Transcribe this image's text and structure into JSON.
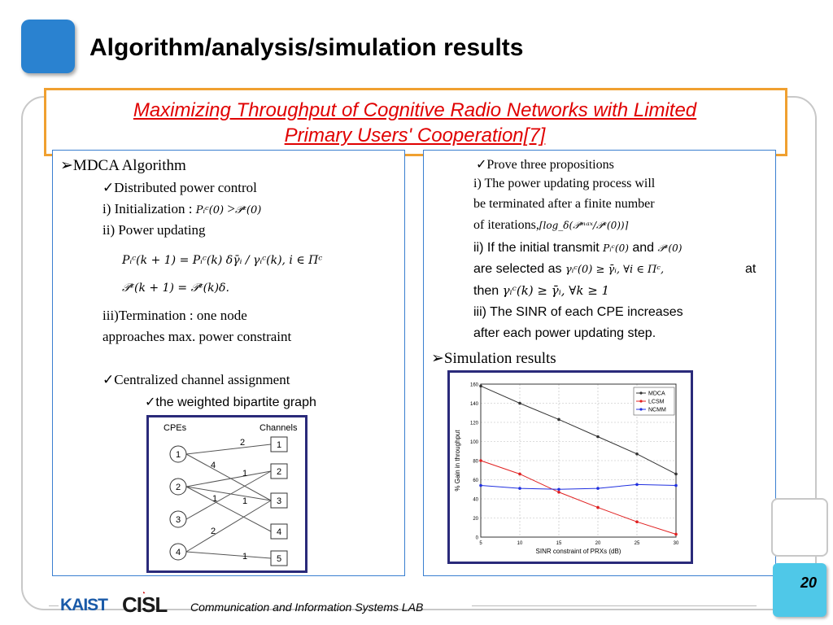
{
  "slide": {
    "title": "Algorithm/analysis/simulation results",
    "subtitle_line1": "Maximizing Throughput of Cognitive Radio Networks with Limited",
    "subtitle_line2": "Primary Users' Cooperation[7]",
    "page_number": "20",
    "footer_text": "Communication and Information Systems LAB",
    "logo_kaist": "KAIST",
    "logo_cisl": "CISL"
  },
  "left": {
    "heading": "MDCA Algorithm",
    "sub1": "Distributed power control",
    "init_label": "i) Initialization :",
    "init_math_a": "Pᵢᶜ(0)",
    "init_gt": ">",
    "init_math_b": "𝒫ᶜ(0)",
    "update_label": "ii) Power updating",
    "eq1": "Pᵢᶜ(k + 1) = Pᵢᶜ(k) δγ̄ᵢ / γᵢᶜ(k),  i ∈ Πᶜ",
    "eq2": "𝒫ᶜ(k + 1) = 𝒫ᶜ(k)δ.",
    "term_line1": "iii)Termination : one node",
    "term_line2": "approaches max. power constraint",
    "sub2": "Centralized channel assignment",
    "sub3": "the weighted bipartite graph"
  },
  "graph": {
    "col_cpes": "CPEs",
    "col_channels": "Channels",
    "cpes": [
      "1",
      "2",
      "3",
      "4"
    ],
    "channels": [
      "1",
      "2",
      "3",
      "4",
      "5"
    ],
    "edge_labels": [
      "2",
      "4",
      "1",
      "1",
      "1",
      "2",
      "1"
    ]
  },
  "right": {
    "prop_heading": "Prove three propositions",
    "p1_l1": "i) The power updating process will",
    "p1_l2": "be terminated after a finite number",
    "p1_l3": "of iterations,",
    "p1_math": "⌈log_δ(𝒫ᵐᵃˣ/𝒫ᶜ(0))⌉",
    "p2_a": "ii) If the initial transmit",
    "p2_math1": "Pᵢᶜ(0)",
    "p2_and": "and",
    "p2_math2": "𝒫ᶜ(0)",
    "p2_b": "are selected as",
    "p2_math3": "γᵢᶜ(0) ≥ γ̄ᵢ,  ∀i ∈ Πᶜ,",
    "p2_at": "at",
    "p2_c": "then",
    "p2_math4": "γᵢᶜ(k) ≥ γ̄ᵢ,  ∀k ≥ 1",
    "p3_l1": "iii) The SINR of each CPE increases",
    "p3_l2": "after each power updating step.",
    "sim_heading": "Simulation results"
  },
  "chart_data": {
    "type": "line",
    "x": [
      5,
      10,
      15,
      20,
      25,
      30
    ],
    "series": [
      {
        "name": "MDCA",
        "values": [
          158,
          140,
          123,
          105,
          87,
          66
        ],
        "color": "#333333"
      },
      {
        "name": "LCSM",
        "values": [
          80,
          66,
          47,
          31,
          16,
          3
        ],
        "color": "#e02020"
      },
      {
        "name": "NCMM",
        "values": [
          54,
          51,
          50,
          51,
          55,
          54
        ],
        "color": "#2030e0"
      }
    ],
    "xlabel": "SINR constraint of PRXs (dB)",
    "ylabel": "% Gain in throughput",
    "xlim": [
      5,
      30
    ],
    "ylim": [
      0,
      160
    ],
    "xticks": [
      "5",
      "10",
      "15",
      "20",
      "25",
      "30"
    ],
    "yticks": [
      "0",
      "20",
      "40",
      "60",
      "80",
      "100",
      "120",
      "140",
      "160"
    ],
    "grid": true,
    "legend": "top-right"
  },
  "colors": {
    "accent_blue": "#2a82d0",
    "subtitle_red": "#e00000",
    "subtitle_border": "#f0a030",
    "page_box": "#4fc8e8"
  }
}
